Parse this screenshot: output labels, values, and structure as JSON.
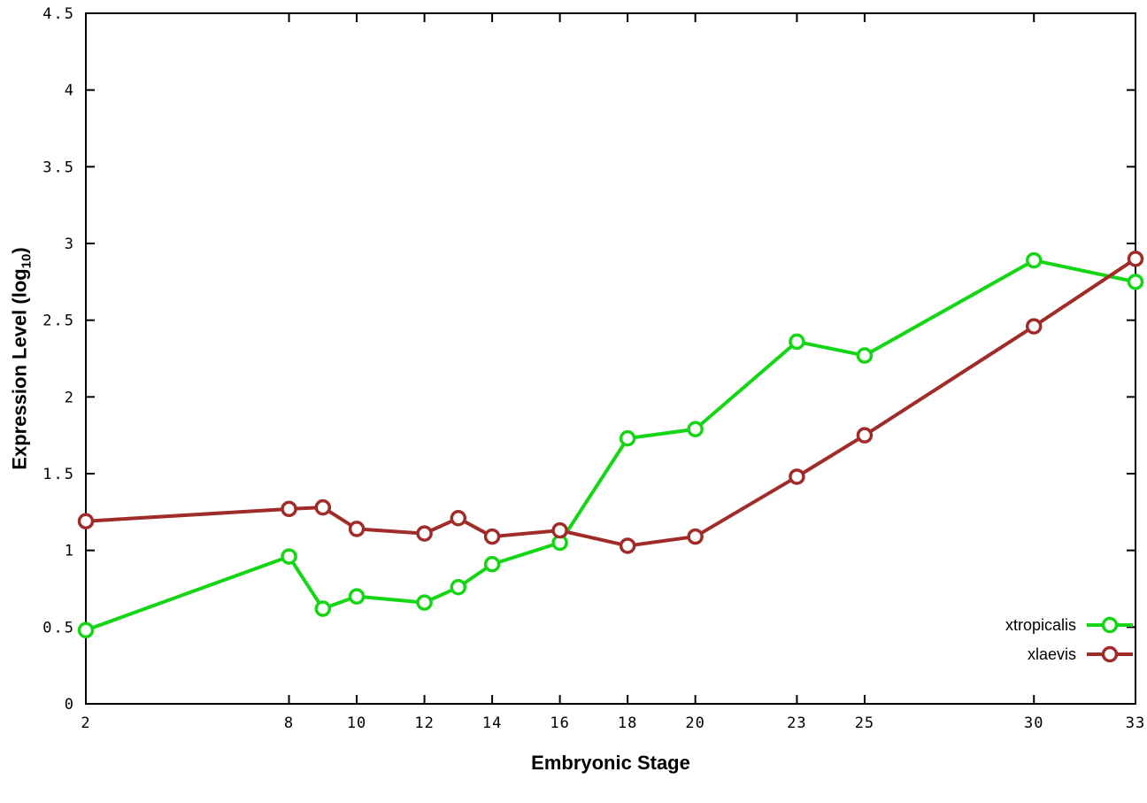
{
  "chart_data": {
    "type": "line",
    "title": "",
    "xlabel": "Embryonic Stage",
    "ylabel_prefix": "Expression Level (log",
    "ylabel_subscript": "10",
    "ylabel_suffix": ")",
    "xlim": [
      2,
      33
    ],
    "ylim": [
      0,
      4.5
    ],
    "x_ticks": [
      2,
      8,
      10,
      12,
      14,
      16,
      18,
      20,
      23,
      25,
      30,
      33
    ],
    "x_tick_labels": [
      "2",
      "8",
      "10",
      "12",
      "14",
      "16",
      "18",
      "20",
      "23",
      "25",
      "30",
      "33"
    ],
    "y_ticks": [
      0,
      0.5,
      1,
      1.5,
      2,
      2.5,
      3,
      3.5,
      4,
      4.5
    ],
    "y_tick_labels": [
      "0",
      "0.5",
      "1",
      "1.5",
      "2",
      "2.5",
      "3",
      "3.5",
      "4",
      "4.5"
    ],
    "x": [
      2,
      8,
      9,
      10,
      12,
      13,
      14,
      16,
      18,
      20,
      23,
      25,
      30,
      33
    ],
    "series": [
      {
        "name": "xtropicalis",
        "color": "#15d615",
        "values": [
          0.48,
          0.96,
          0.62,
          0.7,
          0.66,
          0.76,
          0.91,
          1.05,
          1.73,
          1.79,
          2.36,
          2.27,
          2.89,
          2.75
        ]
      },
      {
        "name": "xlaevis",
        "color": "#a02c2a",
        "values": [
          1.19,
          1.27,
          1.28,
          1.14,
          1.11,
          1.21,
          1.09,
          1.13,
          1.03,
          1.09,
          1.48,
          1.75,
          2.46,
          2.9
        ]
      }
    ],
    "grid": false,
    "marker": "open-circle",
    "legend_position": "bottom-right-inside",
    "axis_color": "#000000",
    "background_color": "#ffffff"
  }
}
